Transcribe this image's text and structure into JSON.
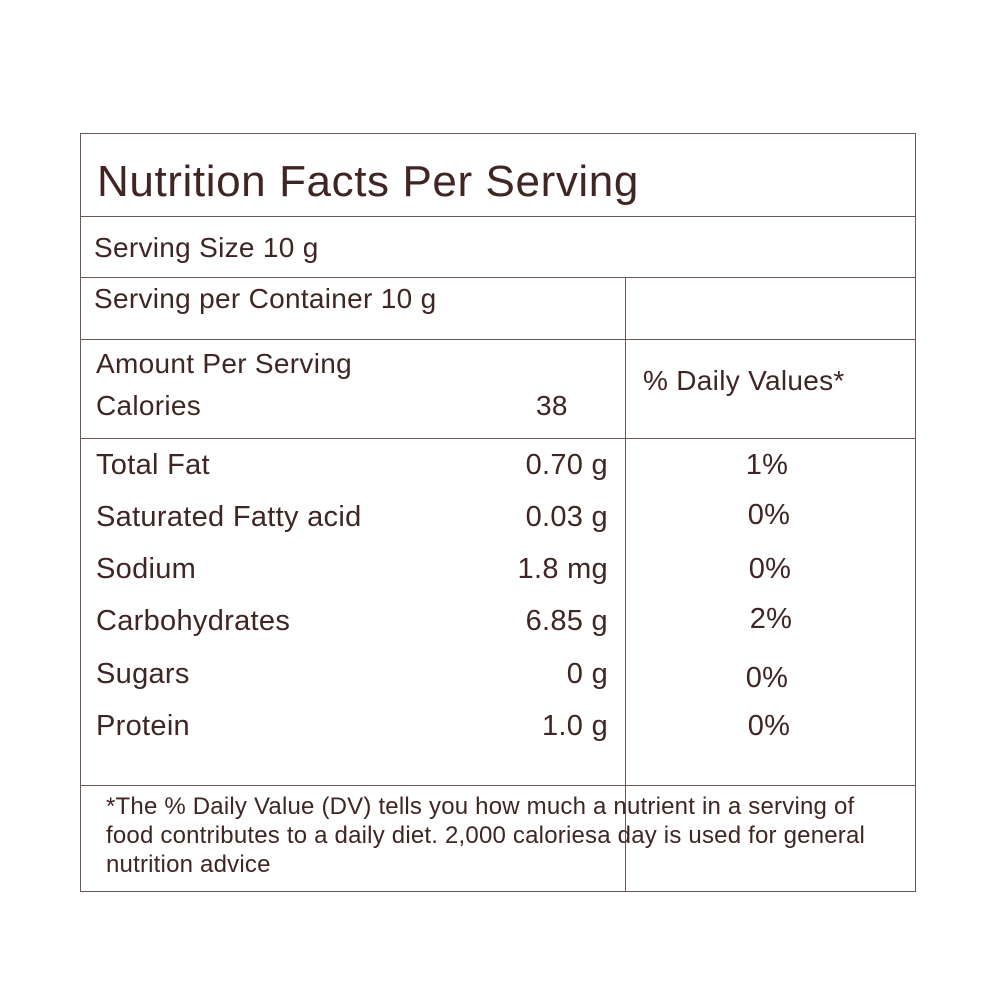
{
  "title": "Nutrition Facts Per Serving",
  "serving_size": "Serving Size 10 g",
  "serving_per_container": "Serving per Container 10 g",
  "amount_per_serving": "Amount Per Serving",
  "calories_label": "Calories",
  "calories_value": "38",
  "daily_values_header": "% Daily Values*",
  "nutrients": [
    {
      "name": "Total Fat",
      "amount": "0.70 g",
      "dv": "1%"
    },
    {
      "name": "Saturated Fatty acid",
      "amount": "0.03 g",
      "dv": "0%"
    },
    {
      "name": "Sodium",
      "amount": "1.8 mg",
      "dv": "0%"
    },
    {
      "name": "Carbohydrates",
      "amount": "6.85 g",
      "dv": "2%"
    },
    {
      "name": "Sugars",
      "amount": "0 g",
      "dv": "0%"
    },
    {
      "name": "Protein",
      "amount": "1.0 g",
      "dv": "0%"
    }
  ],
  "footnote": "*The % Daily Value (DV) tells you how much a nutrient in a serving of food contributes to a daily diet. 2,000 caloriesa day is used for general nutrition advice",
  "colors": {
    "text": "#3f2622",
    "border": "#6b5854",
    "background": "#ffffff"
  }
}
